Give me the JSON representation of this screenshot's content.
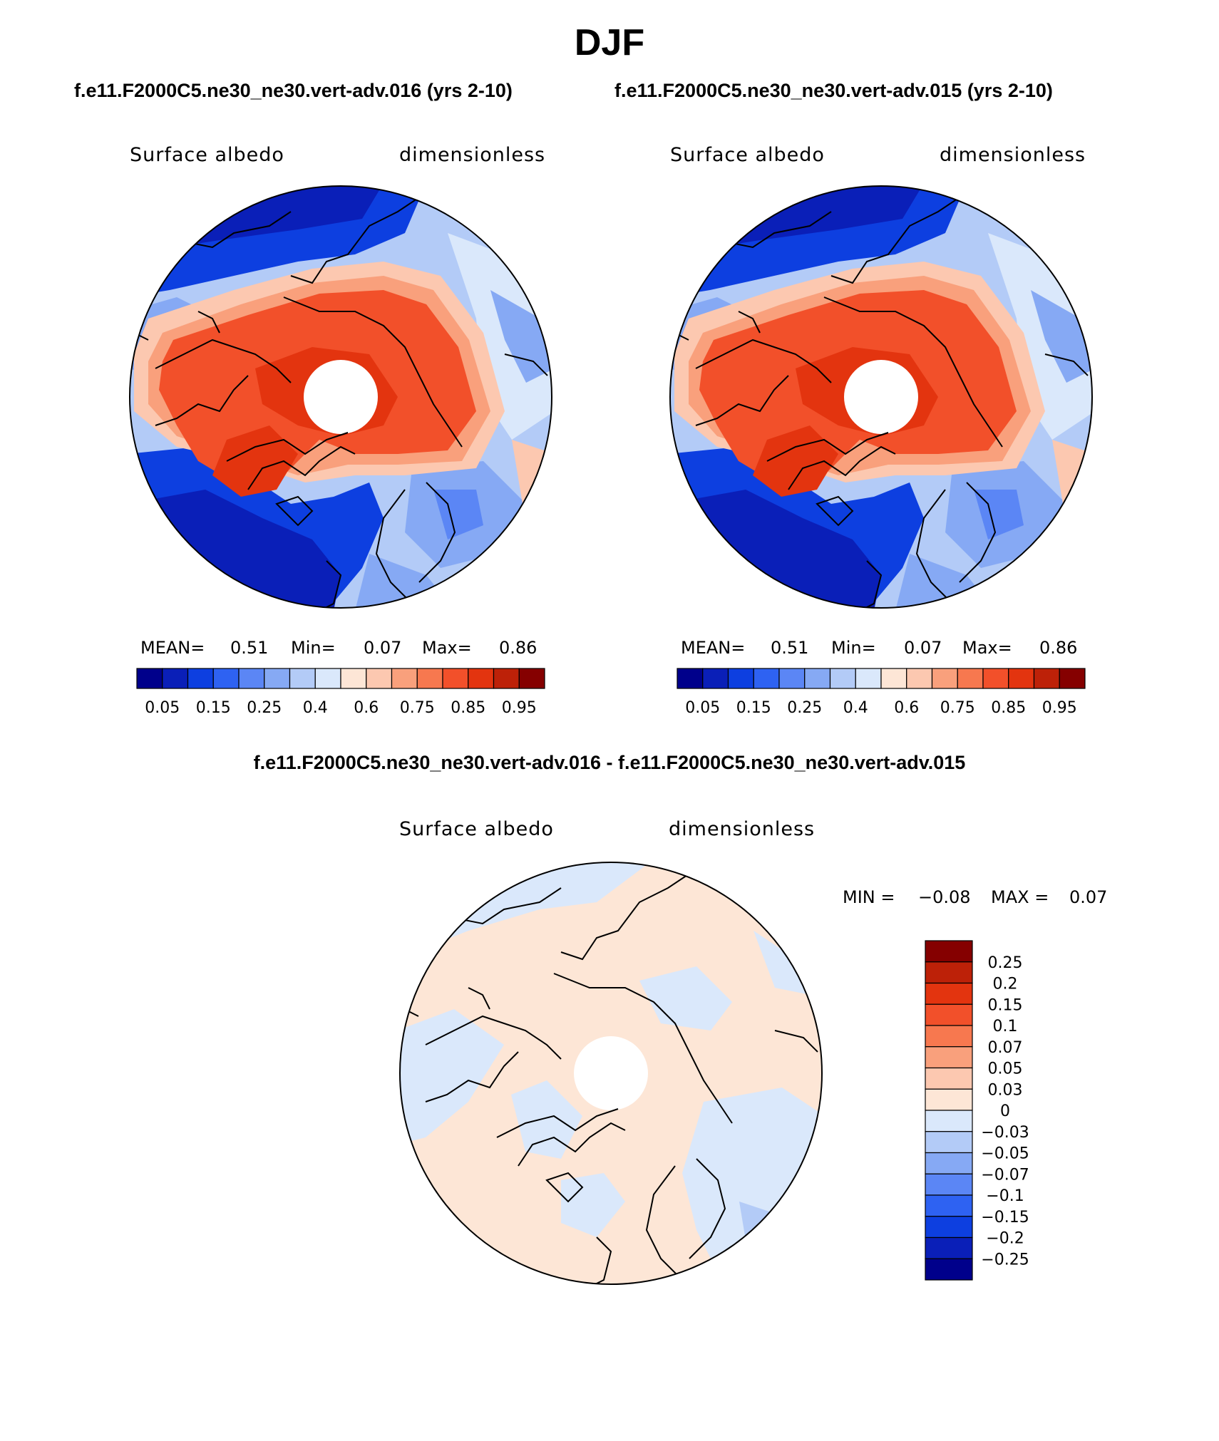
{
  "title": "DJF",
  "panels": [
    {
      "case": "f.e11.F2000C5.ne30_ne30.vert-adv.016 (yrs 2-10)",
      "variable": "Surface albedo",
      "units": "dimensionless",
      "stats": {
        "mean_label": "MEAN=",
        "mean": "0.51",
        "min_label": "Min=",
        "min": "0.07",
        "max_label": "Max=",
        "max": "0.86"
      }
    },
    {
      "case": "f.e11.F2000C5.ne30_ne30.vert-adv.015 (yrs 2-10)",
      "variable": "Surface albedo",
      "units": "dimensionless",
      "stats": {
        "mean_label": "MEAN=",
        "mean": "0.51",
        "min_label": "Min=",
        "min": "0.07",
        "max_label": "Max=",
        "max": "0.86"
      }
    }
  ],
  "difference": {
    "title": "f.e11.F2000C5.ne30_ne30.vert-adv.016 - f.e11.F2000C5.ne30_ne30.vert-adv.015",
    "variable": "Surface albedo",
    "units": "dimensionless",
    "stats": {
      "min_label": "MIN =",
      "min": "−0.08",
      "max_label": "MAX =",
      "max": "0.07"
    }
  },
  "colorbar_main": {
    "labels": [
      "0.05",
      "0.15",
      "0.25",
      "0.4",
      "0.6",
      "0.75",
      "0.85",
      "0.95"
    ],
    "colors": [
      "#00008b",
      "#0a1fb8",
      "#0d3fe0",
      "#2e62f2",
      "#5b86f5",
      "#86a9f4",
      "#b3cbf7",
      "#dae8fb",
      "#fde6d6",
      "#fcc8b0",
      "#f9a07c",
      "#f7784f",
      "#f2502a",
      "#e3340f",
      "#bd2108",
      "#850000"
    ]
  },
  "colorbar_diff": {
    "labels": [
      "0.25",
      "0.2",
      "0.15",
      "0.1",
      "0.07",
      "0.05",
      "0.03",
      "0",
      "−0.03",
      "−0.05",
      "−0.07",
      "−0.1",
      "−0.15",
      "−0.2",
      "−0.25"
    ],
    "colors": [
      "#850000",
      "#bd2108",
      "#e3340f",
      "#f2502a",
      "#f7784f",
      "#f9a07c",
      "#fcc8b0",
      "#fde6d6",
      "#dae8fb",
      "#b3cbf7",
      "#86a9f4",
      "#5b86f5",
      "#2e62f2",
      "#0d3fe0",
      "#0a1fb8",
      "#00008b"
    ]
  }
}
